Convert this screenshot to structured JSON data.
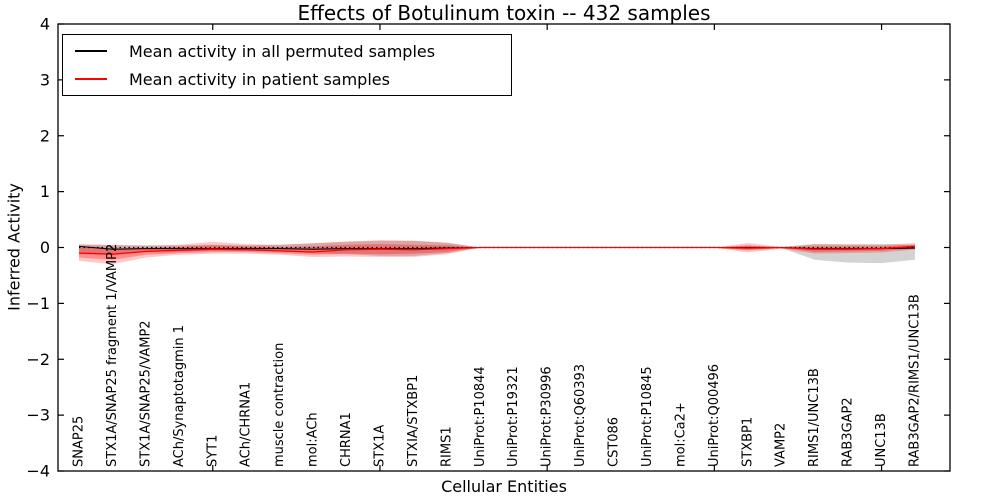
{
  "chart_data": {
    "type": "line",
    "title": "Effects of Botulinum toxin -- 432 samples",
    "xlabel": "Cellular Entities",
    "ylabel": "Inferred Activity",
    "ylim": [
      -4,
      4
    ],
    "ytick_values": [
      4,
      3,
      2,
      1,
      0,
      -1,
      -2,
      -3,
      -4
    ],
    "ytick_labels": [
      "4",
      "3",
      "2",
      "1",
      "0",
      "−1",
      "−2",
      "−3",
      "−4"
    ],
    "x_major_tick_indices": [
      4,
      9,
      14,
      19,
      24
    ],
    "grid": false,
    "legend_position": "upper left",
    "categories": [
      "SNAP25",
      "STX1A/SNAP25 fragment 1/VAMP2",
      "STX1A/SNAP25/VAMP2",
      "ACh/Synaptotagmin 1",
      "SYT1",
      "ACh/CHRNA1",
      "muscle contraction",
      "mol:ACh",
      "CHRNA1",
      "STX1A",
      "STXIA/STXBP1",
      "RIMS1",
      "UniProt:P10844",
      "UniProt:P19321",
      "UniProt:P30996",
      "UniProt:Q60393",
      "CST086",
      "UniProt:P10845",
      "mol:Ca2+",
      "UniProt:Q00496",
      "STXBP1",
      "VAMP2",
      "RIMS1/UNC13B",
      "RAB3GAP2",
      "UNC13B",
      "RAB3GAP2/RIMS1/UNC13B"
    ],
    "series": [
      {
        "name": "Mean activity in all permuted samples",
        "color": "#000000",
        "values": [
          0.02,
          -0.03,
          -0.02,
          -0.02,
          -0.02,
          -0.02,
          -0.02,
          -0.03,
          -0.02,
          -0.02,
          -0.02,
          -0.01,
          0,
          0,
          0,
          0,
          0,
          0,
          0,
          0,
          0,
          0,
          -0.02,
          -0.02,
          -0.02,
          -0.01
        ]
      },
      {
        "name": "Mean activity in patient samples",
        "color": "#ff0000",
        "values": [
          -0.1,
          -0.12,
          -0.07,
          -0.05,
          -0.03,
          -0.04,
          -0.06,
          -0.08,
          -0.04,
          -0.03,
          -0.04,
          -0.02,
          0,
          0,
          0,
          0,
          0,
          0,
          0,
          0,
          -0.01,
          0,
          -0.03,
          -0.03,
          -0.02,
          0.02
        ]
      }
    ],
    "bands": [
      {
        "name": "permuted-band",
        "color": "#8c8c8c",
        "opacity": 0.38,
        "upper": [
          0.05,
          0.05,
          0.04,
          0.04,
          0.05,
          0.04,
          0.05,
          0.08,
          0.1,
          0.12,
          0.12,
          0.08,
          0,
          0,
          0,
          0,
          0,
          0,
          0,
          0,
          0.03,
          0.01,
          0.06,
          0.06,
          0.06,
          0.05
        ],
        "lower": [
          -0.1,
          -0.12,
          -0.08,
          -0.07,
          -0.06,
          -0.06,
          -0.07,
          -0.1,
          -0.12,
          -0.15,
          -0.15,
          -0.1,
          0,
          0,
          0,
          0,
          0,
          0,
          0,
          0,
          -0.04,
          -0.01,
          -0.22,
          -0.27,
          -0.28,
          -0.22
        ]
      },
      {
        "name": "patient-band-outer",
        "color": "#ff0000",
        "opacity": 0.22,
        "upper": [
          0.06,
          0.04,
          0.03,
          0.05,
          0.1,
          0.06,
          0.05,
          0.07,
          0.11,
          0.13,
          0.12,
          0.09,
          0,
          0,
          0,
          0,
          0,
          0,
          0,
          0,
          0.08,
          0.01,
          0.06,
          0.05,
          0.05,
          0.08
        ],
        "lower": [
          -0.24,
          -0.3,
          -0.18,
          -0.13,
          -0.11,
          -0.11,
          -0.13,
          -0.17,
          -0.16,
          -0.17,
          -0.17,
          -0.12,
          0,
          0,
          0,
          0,
          0,
          0,
          0,
          0,
          -0.09,
          -0.02,
          -0.11,
          -0.1,
          -0.09,
          -0.04
        ]
      },
      {
        "name": "patient-band-inner",
        "color": "#ff0000",
        "opacity": 0.3,
        "upper": [
          0.0,
          -0.02,
          -0.01,
          0.01,
          0.04,
          0.02,
          0.01,
          0.02,
          0.05,
          0.06,
          0.05,
          0.04,
          0,
          0,
          0,
          0,
          0,
          0,
          0,
          0,
          0.04,
          0.0,
          0.02,
          0.02,
          0.02,
          0.05
        ],
        "lower": [
          -0.18,
          -0.22,
          -0.13,
          -0.1,
          -0.08,
          -0.08,
          -0.1,
          -0.13,
          -0.11,
          -0.12,
          -0.11,
          -0.08,
          0,
          0,
          0,
          0,
          0,
          0,
          0,
          0,
          -0.05,
          -0.01,
          -0.08,
          -0.07,
          -0.06,
          -0.02
        ]
      }
    ],
    "zero_line": {
      "y": 0,
      "color": "#000000",
      "style": "dotted"
    }
  }
}
